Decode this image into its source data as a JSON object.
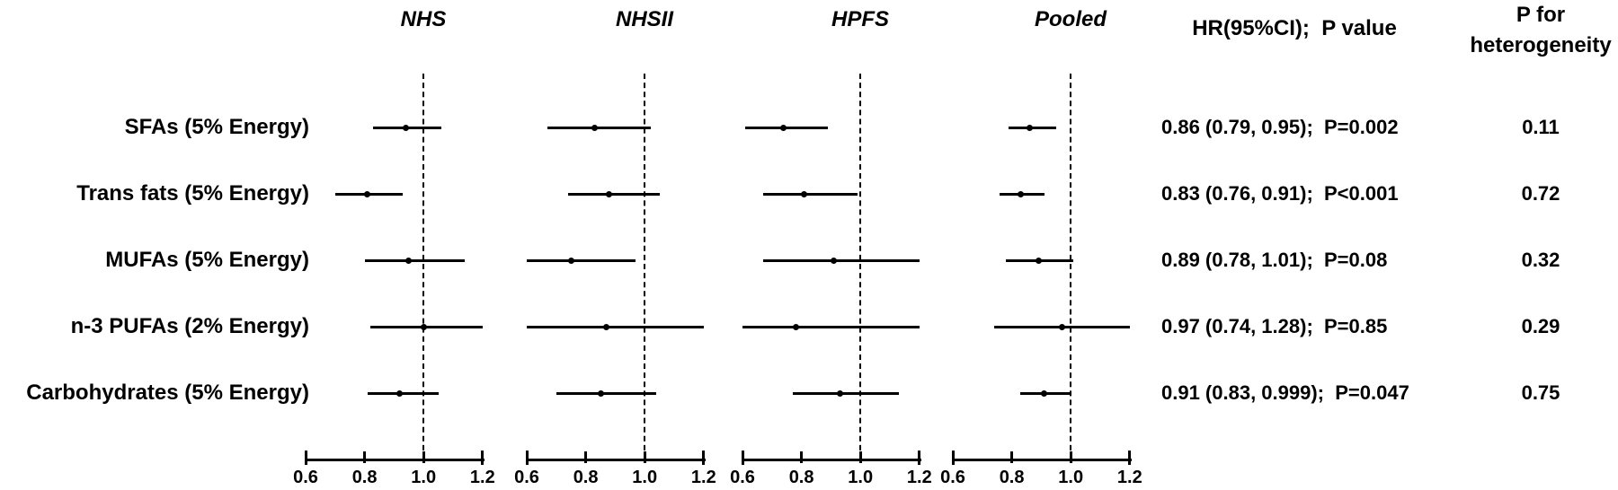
{
  "figure": {
    "columns": {
      "hr_header": "HR(95%CI);  P value",
      "het_header": [
        "P for",
        "heterogeneity"
      ]
    }
  },
  "chart_data": {
    "type": "forest",
    "panels": [
      "NHS",
      "NHSII",
      "HPFS",
      "Pooled"
    ],
    "x_axis": {
      "min": 0.6,
      "max": 1.2,
      "tick_values": [
        0.6,
        0.8,
        1.0,
        1.2
      ],
      "tick_labels": [
        "0.6",
        "0.8",
        "1.0",
        "1.2"
      ],
      "reference_line": 1.0,
      "note": "CIs extending beyond 1.2 or below 0.6 are clipped at the axis limits"
    },
    "rows": [
      {
        "label": "SFAs (5% Energy)",
        "hr_text": "0.86 (0.79, 0.95);  P=0.002",
        "p_heterogeneity": "0.11",
        "series": {
          "NHS": {
            "hr": 0.94,
            "lo": 0.83,
            "hi": 1.06
          },
          "NHSII": {
            "hr": 0.83,
            "lo": 0.67,
            "hi": 1.02
          },
          "HPFS": {
            "hr": 0.74,
            "lo": 0.61,
            "hi": 0.89
          },
          "Pooled": {
            "hr": 0.86,
            "lo": 0.79,
            "hi": 0.95
          }
        }
      },
      {
        "label": "Trans fats (5% Energy)",
        "hr_text": "0.83 (0.76, 0.91);  P<0.001",
        "p_heterogeneity": "0.72",
        "series": {
          "NHS": {
            "hr": 0.81,
            "lo": 0.7,
            "hi": 0.93
          },
          "NHSII": {
            "hr": 0.88,
            "lo": 0.74,
            "hi": 1.05
          },
          "HPFS": {
            "hr": 0.81,
            "lo": 0.67,
            "hi": 0.99
          },
          "Pooled": {
            "hr": 0.83,
            "lo": 0.76,
            "hi": 0.91
          }
        }
      },
      {
        "label": "MUFAs (5% Energy)",
        "hr_text": "0.89 (0.78, 1.01);  P=0.08",
        "p_heterogeneity": "0.32",
        "series": {
          "NHS": {
            "hr": 0.95,
            "lo": 0.8,
            "hi": 1.14
          },
          "NHSII": {
            "hr": 0.75,
            "lo": 0.6,
            "hi": 0.97
          },
          "HPFS": {
            "hr": 0.91,
            "lo": 0.67,
            "hi": 1.2
          },
          "Pooled": {
            "hr": 0.89,
            "lo": 0.78,
            "hi": 1.01
          }
        }
      },
      {
        "label": "n-3 PUFAs (2% Energy)",
        "hr_text": "0.97 (0.74, 1.28);  P=0.85",
        "p_heterogeneity": "0.29",
        "series": {
          "NHS": {
            "hr": 1.0,
            "lo": 0.82,
            "hi": 1.2
          },
          "NHSII": {
            "hr": 0.87,
            "lo": 0.6,
            "hi": 1.2
          },
          "HPFS": {
            "hr": 0.78,
            "lo": 0.6,
            "hi": 1.2
          },
          "Pooled": {
            "hr": 0.97,
            "lo": 0.74,
            "hi": 1.28
          }
        }
      },
      {
        "label": "Carbohydrates (5% Energy)",
        "hr_text": "0.91 (0.83, 0.999);  P=0.047",
        "p_heterogeneity": "0.75",
        "series": {
          "NHS": {
            "hr": 0.92,
            "lo": 0.81,
            "hi": 1.05
          },
          "NHSII": {
            "hr": 0.85,
            "lo": 0.7,
            "hi": 1.04
          },
          "HPFS": {
            "hr": 0.93,
            "lo": 0.77,
            "hi": 1.13
          },
          "Pooled": {
            "hr": 0.91,
            "lo": 0.83,
            "hi": 0.999
          }
        }
      }
    ]
  }
}
